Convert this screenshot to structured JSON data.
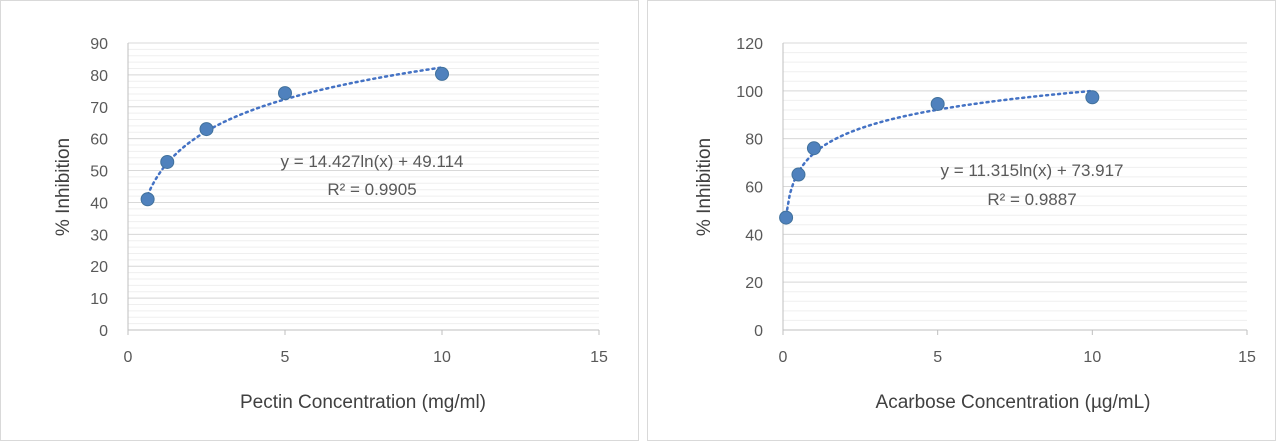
{
  "chart_data": [
    {
      "type": "scatter",
      "title": "",
      "xlabel": "Pectin Concentration (mg/ml)",
      "ylabel": "% Inhibition",
      "xlim": [
        0,
        15
      ],
      "ylim": [
        0,
        90
      ],
      "xticks": [
        0,
        5,
        10,
        15
      ],
      "yticks": [
        0,
        10,
        20,
        30,
        40,
        50,
        60,
        70,
        80,
        90
      ],
      "minor_gridlines": true,
      "points": [
        {
          "x": 0.625,
          "y": 41
        },
        {
          "x": 1.25,
          "y": 52.7
        },
        {
          "x": 2.5,
          "y": 63
        },
        {
          "x": 5,
          "y": 74.3
        },
        {
          "x": 10,
          "y": 80.3
        }
      ],
      "trendline": {
        "type": "logarithmic",
        "a": 14.427,
        "b": 49.114,
        "x_from": 0.625,
        "x_to": 10
      },
      "equation": "y = 14.427ln(x) + 49.114",
      "r_squared": "R² = 0.9905",
      "marker_color": "#4f81bd",
      "trendline_color": "#4472c4"
    },
    {
      "type": "scatter",
      "title": "",
      "xlabel": "Acarbose Concentration (µg/mL)",
      "ylabel": "% Inhibition",
      "xlim": [
        0,
        15
      ],
      "ylim": [
        0,
        120
      ],
      "xticks": [
        0,
        5,
        10,
        15
      ],
      "yticks": [
        0,
        20,
        40,
        60,
        80,
        100,
        120
      ],
      "minor_gridlines": true,
      "points": [
        {
          "x": 0.1,
          "y": 47
        },
        {
          "x": 0.5,
          "y": 65
        },
        {
          "x": 1,
          "y": 76
        },
        {
          "x": 5,
          "y": 94.5
        },
        {
          "x": 10,
          "y": 97.3
        }
      ],
      "trendline": {
        "type": "logarithmic",
        "a": 11.315,
        "b": 73.917,
        "x_from": 0.1,
        "x_to": 10
      },
      "equation": "y = 11.315ln(x) + 73.917",
      "r_squared": "R² = 0.9887",
      "marker_color": "#4f81bd",
      "trendline_color": "#4472c4"
    }
  ]
}
